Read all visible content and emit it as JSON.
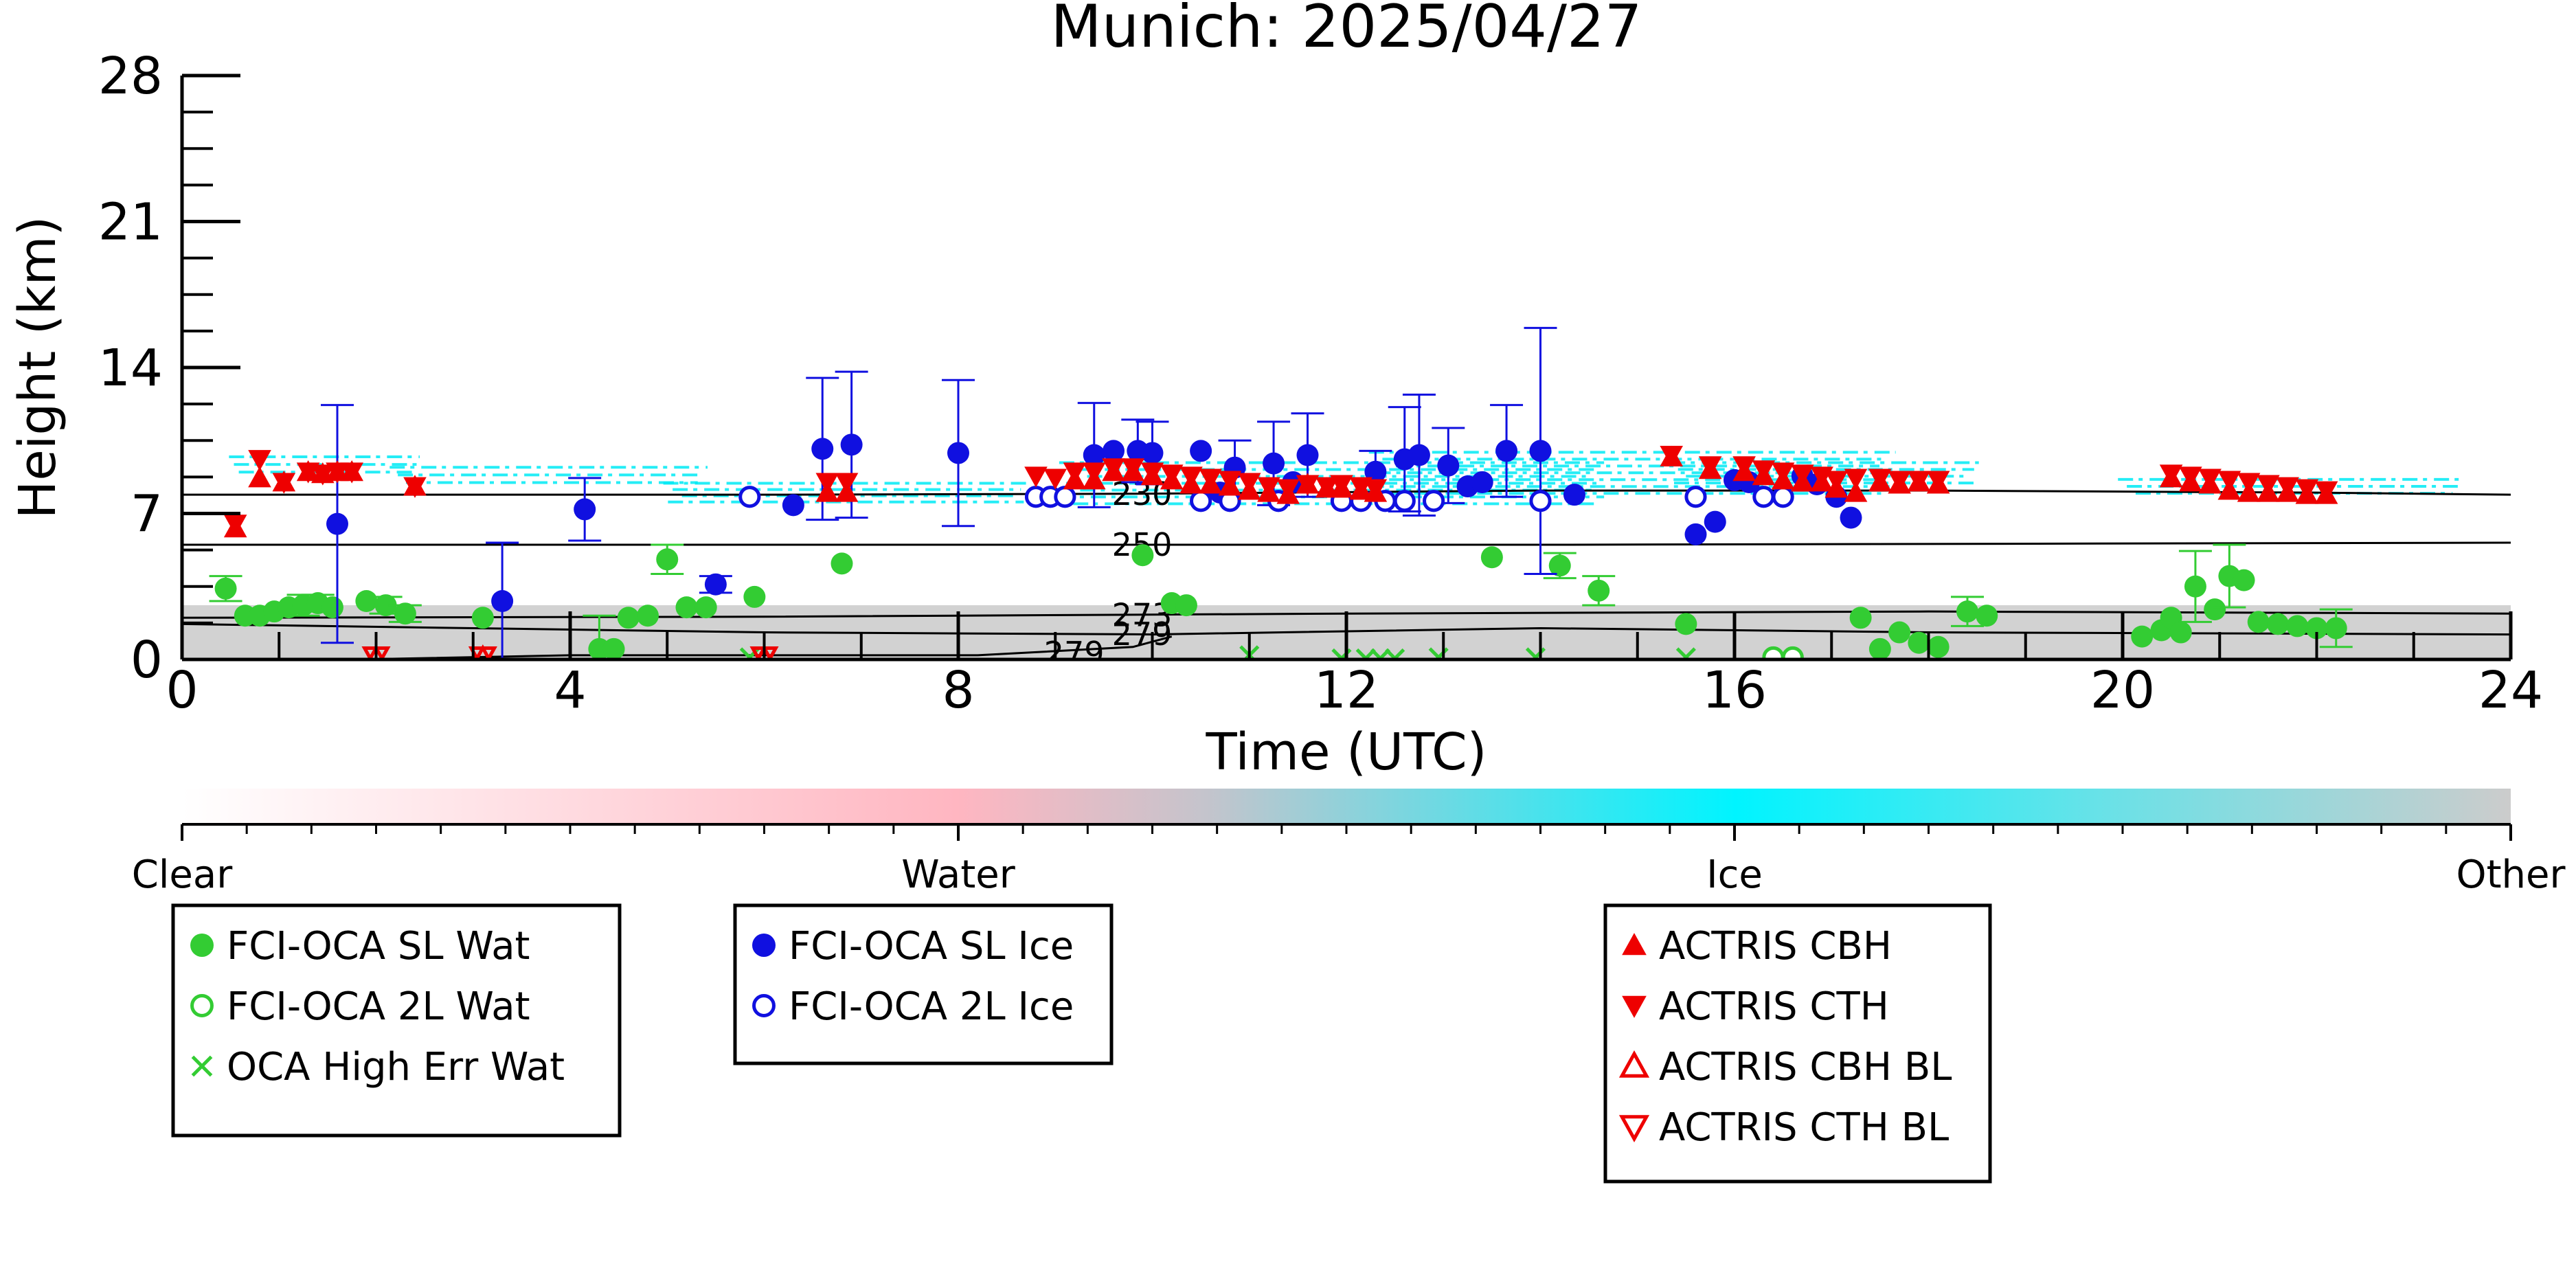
{
  "chart_data": {
    "type": "scatter",
    "title": "Munich: 2025/04/27",
    "xlabel": "Time (UTC)",
    "ylabel": "Height (km)",
    "xlim": [
      0,
      24
    ],
    "ylim": [
      0,
      28
    ],
    "xticks": [
      "0",
      "4",
      "8",
      "12",
      "16",
      "20",
      "24"
    ],
    "yticks": [
      "0",
      "7",
      "14",
      "21",
      "28"
    ],
    "grid": false,
    "colorbar": {
      "orientation": "horizontal",
      "labels": [
        "Clear",
        "Water",
        "Ice",
        "Other"
      ],
      "colors": [
        "#ffffff",
        "#ffb6c1",
        "#00f0ff",
        "#cccccc"
      ]
    },
    "contours": [
      {
        "label": "230",
        "label_x": 9.3,
        "points": [
          [
            0,
            7.9
          ],
          [
            6,
            7.9
          ],
          [
            10,
            7.95
          ],
          [
            14,
            8.1
          ],
          [
            18,
            8.1
          ],
          [
            22,
            8.0
          ],
          [
            24,
            7.9
          ]
        ]
      },
      {
        "label": "250",
        "label_x": 9.3,
        "points": [
          [
            0,
            5.5
          ],
          [
            8,
            5.5
          ],
          [
            14,
            5.5
          ],
          [
            24,
            5.6
          ]
        ]
      },
      {
        "label": "273",
        "label_x": 9.3,
        "points": [
          [
            0,
            2.0
          ],
          [
            6,
            2.05
          ],
          [
            12,
            2.2
          ],
          [
            18,
            2.3
          ],
          [
            24,
            2.2
          ]
        ]
      },
      {
        "label": "279",
        "label_x": 9.3,
        "points": [
          [
            0,
            1.7
          ],
          [
            6,
            1.3
          ],
          [
            10,
            1.2
          ],
          [
            14,
            1.5
          ],
          [
            18,
            1.3
          ],
          [
            24,
            1.2
          ]
        ]
      },
      {
        "label": "279",
        "label_x": 8.6,
        "points": [
          [
            1.8,
            0.0
          ],
          [
            4,
            0.2
          ],
          [
            8.2,
            0.2
          ],
          [
            9.8,
            0.6
          ],
          [
            10.2,
            1.1
          ]
        ]
      }
    ],
    "ice_cloud_bands": [
      {
        "x": [
          0.4,
          2.5
        ],
        "y": [
          8.8,
          9.9
        ]
      },
      {
        "x": [
          2.0,
          5.5
        ],
        "y": [
          8.3,
          9.4
        ]
      },
      {
        "x": [
          4.8,
          8.8
        ],
        "y": [
          7.4,
          8.6
        ]
      },
      {
        "x": [
          8.8,
          14.8
        ],
        "y": [
          7.3,
          9.6
        ]
      },
      {
        "x": [
          12.0,
          17.8
        ],
        "y": [
          7.8,
          10.1
        ]
      },
      {
        "x": [
          15.2,
          18.6
        ],
        "y": [
          8.3,
          9.6
        ]
      },
      {
        "x": [
          19.8,
          23.6
        ],
        "y": [
          7.8,
          8.8
        ]
      }
    ],
    "other_band": {
      "x": [
        0,
        24
      ],
      "y": [
        0,
        2.6
      ]
    },
    "series": [
      {
        "name": "FCI-OCA SL Wat",
        "color": "#33cc33",
        "marker": "circle-filled",
        "points": [
          [
            0.45,
            3.4,
            0.6
          ],
          [
            0.65,
            2.1,
            0
          ],
          [
            0.8,
            2.1,
            0
          ],
          [
            0.95,
            2.3,
            0
          ],
          [
            1.1,
            2.5,
            0
          ],
          [
            1.25,
            2.6,
            0.5
          ],
          [
            1.4,
            2.7,
            0.4
          ],
          [
            1.55,
            2.5,
            0
          ],
          [
            1.9,
            2.8,
            0
          ],
          [
            2.1,
            2.6,
            0.4
          ],
          [
            2.3,
            2.2,
            0.4
          ],
          [
            3.1,
            2.0,
            0
          ],
          [
            4.3,
            0.5,
            1.6
          ],
          [
            4.45,
            0.5,
            0
          ],
          [
            4.6,
            2.0,
            0
          ],
          [
            4.8,
            2.1,
            0
          ],
          [
            5.0,
            4.8,
            0.7
          ],
          [
            5.2,
            2.5,
            0
          ],
          [
            5.4,
            2.5,
            0
          ],
          [
            5.9,
            3.0,
            0
          ],
          [
            6.8,
            4.6,
            0
          ],
          [
            9.9,
            5.0,
            0
          ],
          [
            10.2,
            2.7,
            0
          ],
          [
            10.35,
            2.6,
            0
          ],
          [
            13.5,
            4.9,
            0
          ],
          [
            14.2,
            4.5,
            0.6
          ],
          [
            14.6,
            3.3,
            0.7
          ],
          [
            15.5,
            1.7,
            0
          ],
          [
            17.3,
            2.0,
            0
          ],
          [
            17.5,
            0.5,
            0
          ],
          [
            17.7,
            1.3,
            0
          ],
          [
            17.9,
            0.8,
            0
          ],
          [
            18.1,
            0.6,
            0
          ],
          [
            18.4,
            2.3,
            0.7
          ],
          [
            18.6,
            2.1,
            0
          ],
          [
            20.2,
            1.1,
            0
          ],
          [
            20.4,
            1.4,
            0
          ],
          [
            20.5,
            2.0,
            0
          ],
          [
            20.6,
            1.3,
            0
          ],
          [
            20.75,
            3.5,
            1.7
          ],
          [
            20.95,
            2.4,
            0
          ],
          [
            21.1,
            4.0,
            1.5
          ],
          [
            21.25,
            3.8,
            0
          ],
          [
            21.4,
            1.8,
            0
          ],
          [
            21.6,
            1.7,
            0
          ],
          [
            21.8,
            1.6,
            0
          ],
          [
            22.0,
            1.5,
            0
          ],
          [
            22.2,
            1.5,
            0.9
          ]
        ]
      },
      {
        "name": "FCI-OCA 2L Wat",
        "color": "#33cc33",
        "marker": "circle-open",
        "points": [
          [
            16.4,
            0.1
          ],
          [
            16.6,
            0.1
          ]
        ]
      },
      {
        "name": "OCA High Err Wat",
        "color": "#33cc33",
        "marker": "x",
        "points": [
          [
            5.85,
            0.1
          ],
          [
            11.0,
            0.2
          ],
          [
            11.95,
            0.05
          ],
          [
            12.2,
            0.05
          ],
          [
            12.35,
            0.05
          ],
          [
            12.5,
            0.05
          ],
          [
            12.95,
            0.1
          ],
          [
            13.95,
            0.1
          ],
          [
            15.5,
            0.1
          ]
        ]
      },
      {
        "name": "FCI-OCA SL Ice",
        "color": "#1010e0",
        "marker": "circle-filled",
        "points": [
          [
            1.6,
            6.5,
            5.7
          ],
          [
            3.3,
            2.8,
            2.8
          ],
          [
            4.15,
            7.2,
            1.5
          ],
          [
            5.5,
            3.6,
            0.4
          ],
          [
            6.3,
            7.4,
            0
          ],
          [
            6.6,
            10.1,
            3.4
          ],
          [
            6.9,
            10.3,
            3.5
          ],
          [
            8.0,
            9.9,
            3.5
          ],
          [
            9.4,
            9.8,
            2.5
          ],
          [
            9.6,
            10.0,
            0
          ],
          [
            9.85,
            10.0,
            1.5
          ],
          [
            10.0,
            9.9,
            1.5
          ],
          [
            10.5,
            10.0,
            0
          ],
          [
            10.7,
            8.0,
            0
          ],
          [
            10.85,
            9.2,
            1.3
          ],
          [
            11.25,
            9.4,
            2.0
          ],
          [
            11.45,
            8.5,
            0
          ],
          [
            11.6,
            9.8,
            2.0
          ],
          [
            12.3,
            9.0,
            1.0
          ],
          [
            12.6,
            9.6,
            2.5
          ],
          [
            12.75,
            9.8,
            2.9
          ],
          [
            13.05,
            9.3,
            1.8
          ],
          [
            13.25,
            8.3,
            0
          ],
          [
            13.4,
            8.5,
            0
          ],
          [
            13.65,
            10.0,
            2.2
          ],
          [
            14.0,
            10.0,
            5.9
          ],
          [
            14.35,
            7.9,
            0
          ],
          [
            15.6,
            6.0,
            0
          ],
          [
            15.8,
            6.6,
            0
          ],
          [
            16.0,
            8.6,
            0
          ],
          [
            16.15,
            8.5,
            0
          ],
          [
            16.7,
            8.8,
            0
          ],
          [
            16.85,
            8.4,
            0
          ],
          [
            17.05,
            7.8,
            0
          ],
          [
            17.2,
            6.8,
            0
          ]
        ]
      },
      {
        "name": "FCI-OCA 2L Ice",
        "color": "#1010e0",
        "marker": "circle-open",
        "points": [
          [
            5.85,
            7.8
          ],
          [
            8.8,
            7.8
          ],
          [
            8.95,
            7.8
          ],
          [
            9.1,
            7.8
          ],
          [
            10.5,
            7.6
          ],
          [
            10.8,
            7.6
          ],
          [
            11.3,
            7.6
          ],
          [
            11.95,
            7.6
          ],
          [
            12.15,
            7.6
          ],
          [
            12.4,
            7.6
          ],
          [
            12.6,
            7.6
          ],
          [
            12.9,
            7.6
          ],
          [
            14.0,
            7.6
          ],
          [
            15.6,
            7.8
          ],
          [
            16.3,
            7.8
          ],
          [
            16.5,
            7.8
          ]
        ]
      },
      {
        "name": "ACTRIS CBH",
        "color": "#ee0000",
        "marker": "triangle-up",
        "points": [
          [
            0.55,
            6.3
          ],
          [
            0.8,
            8.7
          ],
          [
            1.05,
            8.5
          ],
          [
            1.3,
            9.0
          ],
          [
            1.45,
            8.9
          ],
          [
            1.6,
            9.0
          ],
          [
            1.75,
            9.0
          ],
          [
            2.4,
            8.3
          ],
          [
            6.65,
            8.0
          ],
          [
            6.85,
            8.0
          ],
          [
            9.2,
            8.6
          ],
          [
            9.4,
            8.6
          ],
          [
            9.6,
            9.0
          ],
          [
            9.8,
            9.0
          ],
          [
            10.0,
            8.8
          ],
          [
            10.2,
            8.6
          ],
          [
            10.4,
            8.4
          ],
          [
            10.6,
            8.4
          ],
          [
            10.8,
            8.3
          ],
          [
            11.0,
            8.1
          ],
          [
            11.2,
            8.0
          ],
          [
            11.4,
            7.9
          ],
          [
            11.6,
            8.4
          ],
          [
            11.8,
            8.2
          ],
          [
            11.95,
            8.2
          ],
          [
            12.15,
            8.1
          ],
          [
            12.3,
            8.0
          ],
          [
            15.35,
            9.7
          ],
          [
            15.75,
            9.1
          ],
          [
            16.1,
            9.0
          ],
          [
            16.3,
            8.8
          ],
          [
            16.5,
            8.6
          ],
          [
            16.7,
            8.5
          ],
          [
            16.9,
            8.5
          ],
          [
            17.05,
            8.2
          ],
          [
            17.25,
            8.0
          ],
          [
            17.5,
            8.5
          ],
          [
            17.7,
            8.4
          ],
          [
            17.9,
            8.5
          ],
          [
            18.1,
            8.4
          ],
          [
            20.5,
            8.7
          ],
          [
            20.7,
            8.5
          ],
          [
            20.9,
            8.4
          ],
          [
            21.1,
            8.1
          ],
          [
            21.3,
            8.0
          ],
          [
            21.5,
            8.0
          ],
          [
            21.7,
            8.0
          ],
          [
            21.9,
            7.9
          ],
          [
            22.1,
            7.9
          ]
        ]
      },
      {
        "name": "ACTRIS CTH",
        "color": "#ee0000",
        "marker": "triangle-down",
        "points": [
          [
            0.55,
            6.5
          ],
          [
            0.8,
            9.6
          ],
          [
            1.05,
            8.5
          ],
          [
            1.3,
            9.0
          ],
          [
            1.45,
            8.9
          ],
          [
            1.6,
            9.0
          ],
          [
            1.75,
            9.0
          ],
          [
            2.4,
            8.3
          ],
          [
            6.65,
            8.5
          ],
          [
            6.85,
            8.5
          ],
          [
            8.8,
            8.8
          ],
          [
            9.0,
            8.7
          ],
          [
            9.2,
            9.0
          ],
          [
            9.4,
            9.0
          ],
          [
            9.6,
            9.2
          ],
          [
            9.8,
            9.2
          ],
          [
            10.0,
            9.0
          ],
          [
            10.2,
            8.9
          ],
          [
            10.4,
            8.8
          ],
          [
            10.6,
            8.7
          ],
          [
            10.8,
            8.6
          ],
          [
            11.0,
            8.5
          ],
          [
            11.2,
            8.3
          ],
          [
            11.4,
            8.2
          ],
          [
            11.6,
            8.4
          ],
          [
            11.8,
            8.3
          ],
          [
            11.95,
            8.4
          ],
          [
            12.15,
            8.3
          ],
          [
            12.3,
            8.2
          ],
          [
            15.35,
            9.8
          ],
          [
            15.75,
            9.3
          ],
          [
            16.1,
            9.3
          ],
          [
            16.3,
            9.1
          ],
          [
            16.5,
            9.0
          ],
          [
            16.7,
            8.9
          ],
          [
            16.9,
            8.8
          ],
          [
            17.05,
            8.6
          ],
          [
            17.25,
            8.7
          ],
          [
            17.5,
            8.7
          ],
          [
            17.7,
            8.6
          ],
          [
            17.9,
            8.6
          ],
          [
            18.1,
            8.6
          ],
          [
            20.5,
            8.9
          ],
          [
            20.7,
            8.8
          ],
          [
            20.9,
            8.7
          ],
          [
            21.1,
            8.6
          ],
          [
            21.3,
            8.5
          ],
          [
            21.5,
            8.4
          ],
          [
            21.7,
            8.3
          ],
          [
            21.9,
            8.2
          ],
          [
            22.1,
            8.1
          ]
        ]
      },
      {
        "name": "ACTRIS CBH BL",
        "color": "#ee0000",
        "marker": "triangle-up-open",
        "points": [
          [
            2.0,
            0.0
          ],
          [
            3.1,
            0.0
          ],
          [
            6.0,
            0.0
          ]
        ]
      },
      {
        "name": "ACTRIS CTH BL",
        "color": "#ee0000",
        "marker": "triangle-down-open",
        "points": [
          [
            2.0,
            0.1
          ],
          [
            3.1,
            0.1
          ],
          [
            6.0,
            0.1
          ]
        ]
      }
    ],
    "legends": [
      {
        "entries": [
          "FCI-OCA SL Wat",
          "FCI-OCA 2L Wat",
          "OCA High Err Wat"
        ]
      },
      {
        "entries": [
          "FCI-OCA SL Ice",
          "FCI-OCA 2L Ice"
        ]
      },
      {
        "entries": [
          "ACTRIS CBH",
          "ACTRIS CTH",
          "ACTRIS CBH BL",
          "ACTRIS CTH BL"
        ]
      }
    ]
  }
}
